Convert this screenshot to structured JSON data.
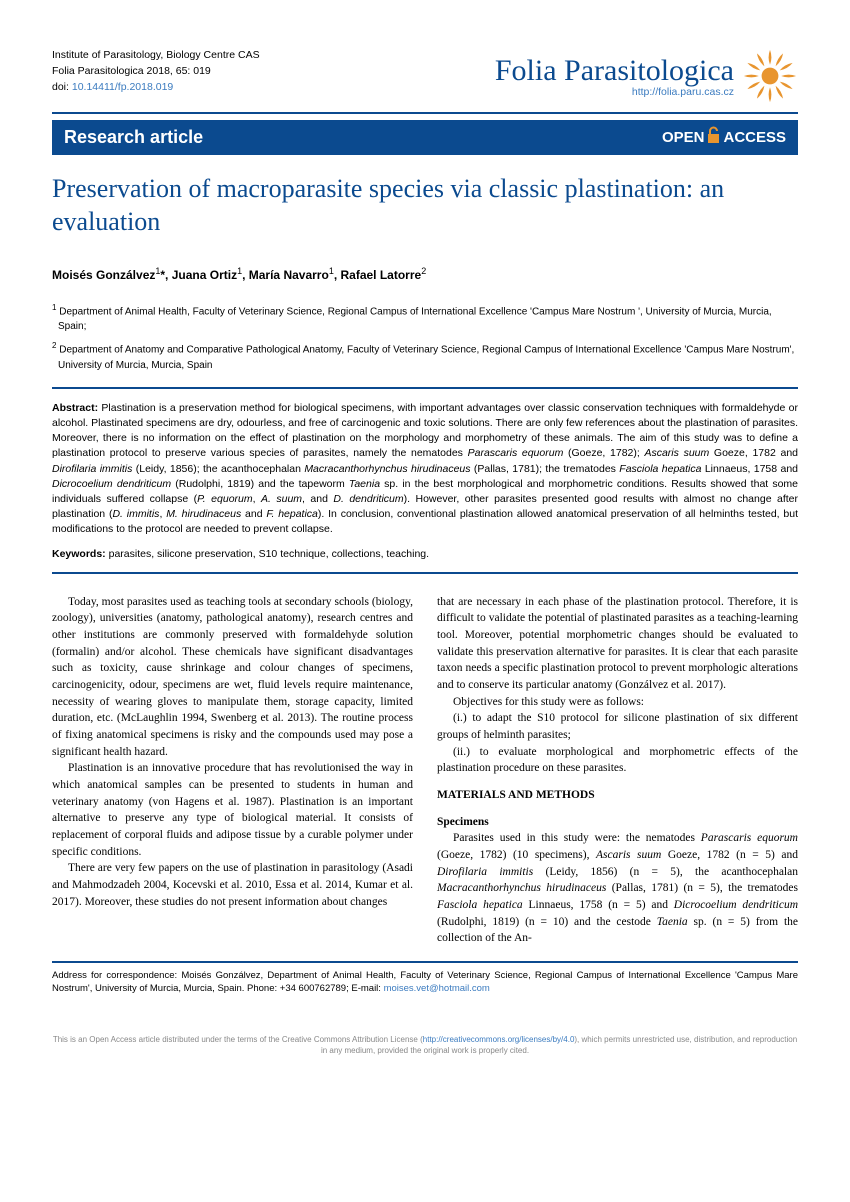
{
  "header": {
    "institute": "Institute of Parasitology, Biology Centre CAS",
    "citation": "Folia Parasitologica 2018, 65: 019",
    "doi_label": "doi: ",
    "doi": "10.14411/fp.2018.019",
    "journal_name": "Folia Parasitologica",
    "journal_url": "http://folia.paru.cas.cz"
  },
  "banner": {
    "article_type": "Research article",
    "open": "OPEN",
    "access": "ACCESS"
  },
  "title": "Preservation of macroparasite species via classic plastination: an evaluation",
  "authors_html": "Moisés Gonzálvez<sup>1</sup>*, Juana Ortiz<sup>1</sup>, María Navarro<sup>1</sup>, Rafael Latorre<sup>2</sup>",
  "affiliations": [
    "<sup>1</sup> Department of Animal Health, Faculty of Veterinary Science, Regional Campus of International Excellence 'Campus Mare Nostrum ', University of Murcia, Murcia, Spain;",
    "<sup>2</sup> Department of Anatomy and Comparative Pathological Anatomy, Faculty of Veterinary Science, Regional Campus of International Excellence 'Campus Mare Nostrum', University of Murcia, Murcia, Spain"
  ],
  "abstract_html": "<b>Abstract:</b> Plastination is a preservation method for biological specimens, with important advantages over classic conservation techniques with formaldehyde or alcohol. Plastinated specimens are dry, odourless, and free of carcinogenic and toxic solutions. There are only few references about the plastination of parasites. Moreover, there is no information on the effect of plastination on the morphology and morphometry of these animals. The aim of this study was to define a plastination protocol to preserve various species of parasites, namely the nematodes <i>Parascaris equorum</i> (Goeze, 1782); <i>Ascaris suum</i> Goeze, 1782 and <i>Dirofilaria immitis</i> (Leidy, 1856); the acanthocephalan <i>Macracanthorhynchus hirudinaceus</i> (Pallas, 1781); the trematodes <i>Fasciola hepatica</i> Linnaeus, 1758 and <i>Dicrocoelium dendriticum</i> (Rudolphi, 1819) and the tapeworm <i>Taenia</i> sp. in the best morphological and morphometric conditions. Results showed that some individuals suffered collapse (<i>P. equorum</i>, <i>A. suum</i>, and <i>D. dendriticum</i>). However, other parasites presented good results with almost no change after plastination (<i>D. immitis</i>, <i>M. hirudinaceus</i> and <i>F. hepatica</i>). In conclusion, conventional plastination allowed anatomical preservation of all helminths tested, but modifications to the protocol are needed to prevent collapse.",
  "keywords_label": "Keywords:",
  "keywords_text": " parasites, silicone preservation, S10 technique, collections, teaching.",
  "body": {
    "col1": [
      "Today, most parasites used as teaching tools at secondary schools (biology, zoology), universities (anatomy, pathological anatomy), research centres and other institutions are commonly preserved with formaldehyde solution (formalin) and/or alcohol. These chemicals have significant disadvantages such as toxicity, cause shrinkage and colour changes of specimens, carcinogenicity, odour, specimens are wet, fluid levels require maintenance, necessity of wearing gloves to manipulate them, storage capacity, limited duration, etc. (McLaughlin 1994, Swenberg et al. 2013). The routine process of fixing anatomical specimens is risky and the compounds used may pose a significant health hazard.",
      "Plastination is an innovative procedure that has revolutionised the way in which anatomical samples can be presented to students in human and veterinary anatomy (von Hagens et al. 1987). Plastination is an important alternative to preserve any type of biological material. It consists of replacement of corporal fluids and adipose tissue by a curable polymer under specific conditions.",
      "There are very few papers on the use of plastination in parasitology (Asadi and Mahmodzadeh 2004, Kocevski et al. 2010, Essa et al. 2014, Kumar et al. 2017). Moreover, these studies do not present information about  changes"
    ],
    "col2_intro": "that are necessary in each phase of the plastination protocol. Therefore, it is difficult to validate the potential of plastinated parasites as a teaching-learning tool. Moreover, potential morphometric changes should be evaluated to validate this preservation alternative for parasites. It is clear that each parasite taxon needs a specific plastination protocol to prevent morphologic alterations and to conserve its particular anatomy (Gonzálvez et al. 2017).",
    "objectives_label": "Objectives for this study were as follows:",
    "objective1": "(i.) to adapt the S10 protocol for silicone plastination of six different groups of helminth parasites;",
    "objective2": "(ii.) to evaluate morphological and morphometric effects of the plastination procedure on these parasites.",
    "materials_head": "MATERIALS AND METHODS",
    "specimens_head": "Specimens",
    "specimens_html": "Parasites used in this study were: the nematodes <i>Parascaris equorum</i> (Goeze, 1782) (10 specimens), <i>Ascaris suum</i> Goeze, 1782 (n = 5) and <i>Dirofilaria immitis</i> (Leidy, 1856) (n = 5), the acanthocephalan <i>Macracanthorhynchus hirudinaceus</i> (Pallas, 1781) (n = 5), the trematodes <i>Fasciola hepatica</i> Linnaeus, 1758 (n = 5) and <i>Dicrocoelium dendriticum</i> (Rudolphi, 1819) (n = 10) and the cestode <i>Taenia</i> sp. (n = 5) from the collection of the An-"
  },
  "footer_html": "Address for correspondence: Moisés Gonzálvez, Department of Animal Health, Faculty of Veterinary Science, Regional Campus of International Excellence 'Campus Mare Nostrum', University of Murcia, Murcia, Spain. Phone: +34 600762789; E-mail: <a>moises.vet@hotmail.com</a>",
  "license_html": "This is an Open Access article distributed under the terms of the Creative Commons Attribution License (<a>http://creativecommons.org/licenses/by/4.0</a>), which permits unrestricted use, distribution, and reproduction in any medium, provided the original work is properly cited.",
  "colors": {
    "blue": "#0b4a8f",
    "link": "#3b7bbf",
    "orange": "#e8952f"
  }
}
